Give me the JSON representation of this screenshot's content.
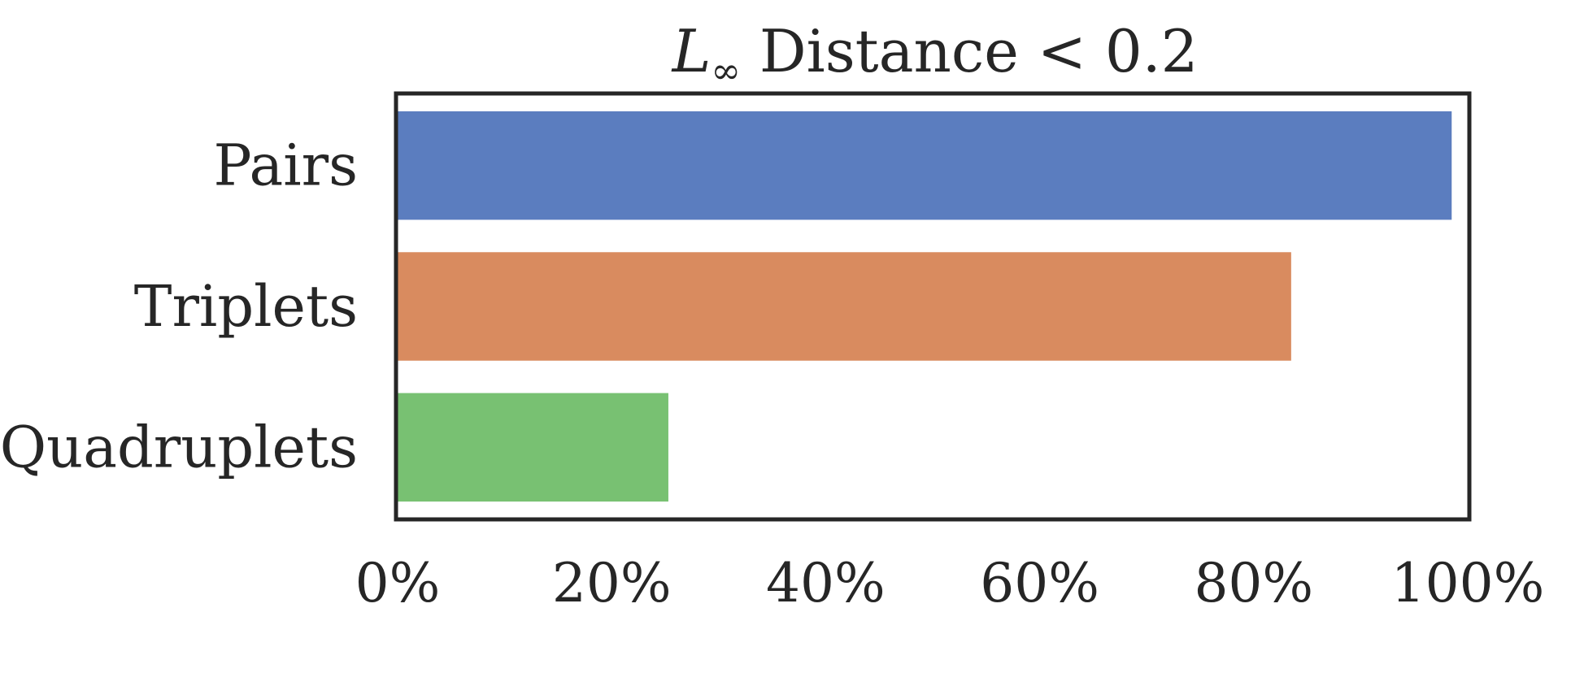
{
  "chart_data": {
    "type": "bar",
    "orientation": "horizontal",
    "title": {
      "symbol": "L",
      "subscript": "∞",
      "text": " Distance < 0.2"
    },
    "categories": [
      "Pairs",
      "Triplets",
      "Quadruplets"
    ],
    "values": [
      98.5,
      83.5,
      25.3
    ],
    "colors": [
      "#5b7dbf",
      "#d98b5f",
      "#78c172"
    ],
    "xlim": [
      0,
      100
    ],
    "xticks": [
      0,
      20,
      40,
      60,
      80,
      100
    ],
    "xtick_labels": [
      "0%",
      "20%",
      "40%",
      "60%",
      "80%",
      "100%"
    ],
    "xlabel": "",
    "ylabel": "",
    "grid": false,
    "legend": false
  }
}
